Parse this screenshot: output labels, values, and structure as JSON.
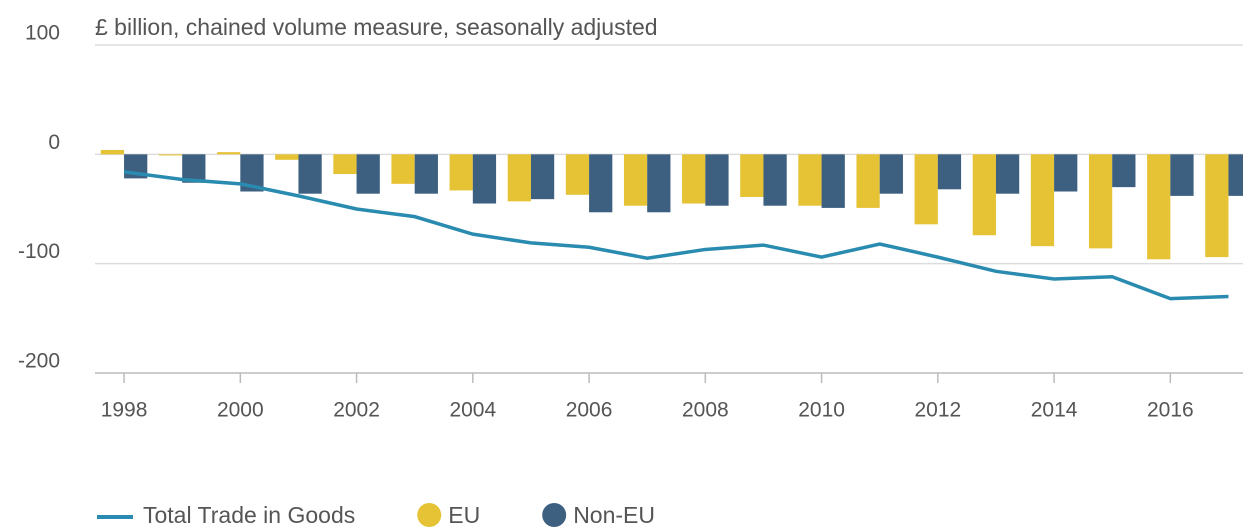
{
  "chart_data": {
    "type": "bar-line",
    "subtitle": "£ billion, chained volume measure, seasonally adjusted",
    "x": [
      1998,
      1999,
      2000,
      2001,
      2002,
      2003,
      2004,
      2005,
      2006,
      2007,
      2008,
      2009,
      2010,
      2011,
      2012,
      2013,
      2014,
      2015,
      2016,
      2017
    ],
    "series": [
      {
        "name": "Total Trade in Goods",
        "type": "line",
        "color": "#2a8bb0",
        "values": [
          -16,
          -23,
          -27,
          -38,
          -50,
          -57,
          -73,
          -81,
          -85,
          -95,
          -87,
          -83,
          -94,
          -82,
          -94,
          -107,
          -114,
          -112,
          -132,
          -130
        ]
      },
      {
        "name": "EU",
        "type": "bar",
        "color": "#e6c235",
        "values": [
          4,
          -1,
          2,
          -5,
          -18,
          -27,
          -33,
          -43,
          -37,
          -47,
          -45,
          -39,
          -47,
          -49,
          -64,
          -74,
          -84,
          -86,
          -96,
          -94
        ]
      },
      {
        "name": "Non-EU",
        "type": "bar",
        "color": "#3d5f80",
        "values": [
          -22,
          -26,
          -34,
          -36,
          -36,
          -36,
          -45,
          -41,
          -53,
          -53,
          -47,
          -47,
          -49,
          -36,
          -32,
          -36,
          -34,
          -30,
          -38,
          -38
        ]
      }
    ],
    "xlim": [
      1997.5,
      2017.25
    ],
    "xticks": [
      1998,
      2000,
      2002,
      2004,
      2006,
      2008,
      2010,
      2012,
      2014,
      2016
    ],
    "ylim": [
      -200,
      100
    ],
    "yticks": [
      -200,
      -100,
      0,
      100
    ],
    "grid": true,
    "legend": "bottom"
  }
}
